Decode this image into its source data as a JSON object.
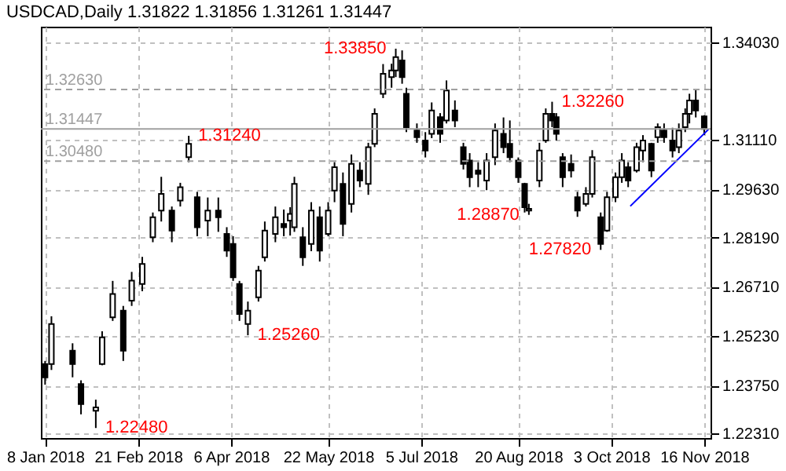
{
  "chart_data": {
    "type": "candlestick",
    "title": "USDCAD,Daily 1.31822 1.31856 1.31261 1.31447",
    "color": "#000000",
    "x": [
      "2018-01-08",
      "2018-01-11",
      "2018-01-21",
      "2018-01-25",
      "2018-02-01",
      "2018-02-04",
      "2018-02-09",
      "2018-02-14",
      "2018-02-18",
      "2018-02-23",
      "2018-02-28",
      "2018-03-04",
      "2018-03-09",
      "2018-03-13",
      "2018-03-17",
      "2018-03-21",
      "2018-03-26",
      "2018-03-31",
      "2018-04-04",
      "2018-04-07",
      "2018-04-10",
      "2018-04-14",
      "2018-04-19",
      "2018-04-22",
      "2018-04-27",
      "2018-05-01",
      "2018-05-04",
      "2018-05-06",
      "2018-05-10",
      "2018-05-14",
      "2018-05-18",
      "2018-05-22",
      "2018-05-25",
      "2018-05-29",
      "2018-06-02",
      "2018-06-06",
      "2018-06-10",
      "2018-06-13",
      "2018-06-17",
      "2018-06-21",
      "2018-06-23",
      "2018-06-26",
      "2018-06-28",
      "2018-07-03",
      "2018-07-07",
      "2018-07-10",
      "2018-07-14",
      "2018-07-17",
      "2018-07-21",
      "2018-07-25",
      "2018-07-28",
      "2018-08-01",
      "2018-08-05",
      "2018-08-09",
      "2018-08-13",
      "2018-08-16",
      "2018-08-20",
      "2018-08-23",
      "2018-08-25",
      "2018-08-30",
      "2018-09-02",
      "2018-09-05",
      "2018-09-07",
      "2018-09-10",
      "2018-09-14",
      "2018-09-17",
      "2018-09-21",
      "2018-09-24",
      "2018-09-28",
      "2018-10-01",
      "2018-10-05",
      "2018-10-08",
      "2018-10-11",
      "2018-10-15",
      "2018-10-18",
      "2018-10-22",
      "2018-10-25",
      "2018-10-28",
      "2018-11-01",
      "2018-11-04",
      "2018-11-07",
      "2018-11-09",
      "2018-11-12",
      "2018-11-16"
    ],
    "ohlc": [
      [
        1.244,
        1.2449,
        1.2378,
        1.24
      ],
      [
        1.244,
        1.2583,
        1.2422,
        1.256
      ],
      [
        1.248,
        1.2502,
        1.24,
        1.244
      ],
      [
        1.238,
        1.2391,
        1.2289,
        1.232
      ],
      [
        1.23,
        1.2333,
        1.2248,
        1.231
      ],
      [
        1.244,
        1.2538,
        1.2436,
        1.252
      ],
      [
        1.258,
        1.2689,
        1.2569,
        1.265
      ],
      [
        1.26,
        1.2614,
        1.2449,
        1.248
      ],
      [
        1.263,
        1.2716,
        1.2614,
        1.269
      ],
      [
        1.268,
        1.2761,
        1.2658,
        1.274
      ],
      [
        1.282,
        1.2894,
        1.2805,
        1.288
      ],
      [
        1.29,
        1.3001,
        1.2867,
        1.295
      ],
      [
        1.29,
        1.2912,
        1.2805,
        1.284
      ],
      [
        1.293,
        1.2983,
        1.2912,
        1.297
      ],
      [
        1.306,
        1.3124,
        1.3045,
        1.31
      ],
      [
        1.294,
        1.2956,
        1.2823,
        1.285
      ],
      [
        1.287,
        1.2939,
        1.2823,
        1.29
      ],
      [
        1.29,
        1.2939,
        1.2836,
        1.288
      ],
      [
        1.283,
        1.285,
        1.2761,
        1.278
      ],
      [
        1.28,
        1.2823,
        1.2689,
        1.27
      ],
      [
        1.268,
        1.2689,
        1.2569,
        1.259
      ],
      [
        1.256,
        1.2627,
        1.2526,
        1.26
      ],
      [
        1.264,
        1.2734,
        1.2627,
        1.272
      ],
      [
        1.276,
        1.2867,
        1.2747,
        1.284
      ],
      [
        1.283,
        1.2912,
        1.2805,
        1.288
      ],
      [
        1.286,
        1.2903,
        1.2823,
        1.285
      ],
      [
        1.287,
        1.291,
        1.2825,
        1.289
      ],
      [
        1.285,
        1.3001,
        1.2836,
        1.298
      ],
      [
        1.282,
        1.285,
        1.2734,
        1.276
      ],
      [
        1.28,
        1.2925,
        1.2778,
        1.29
      ],
      [
        1.288,
        1.2912,
        1.2747,
        1.278
      ],
      [
        1.283,
        1.2925,
        1.2823,
        1.29
      ],
      [
        1.296,
        1.3045,
        1.2925,
        1.303
      ],
      [
        1.298,
        1.3014,
        1.2823,
        1.286
      ],
      [
        1.292,
        1.3068,
        1.2894,
        1.304
      ],
      [
        1.302,
        1.3045,
        1.297,
        1.299
      ],
      [
        1.298,
        1.3103,
        1.2947,
        1.309
      ],
      [
        1.31,
        1.3206,
        1.309,
        1.319
      ],
      [
        1.325,
        1.3339,
        1.3237,
        1.331
      ],
      [
        1.33,
        1.334,
        1.3268,
        1.332
      ],
      [
        1.332,
        1.3385,
        1.33,
        1.336
      ],
      [
        1.335,
        1.338,
        1.328,
        1.33
      ],
      [
        1.325,
        1.3268,
        1.3135,
        1.315
      ],
      [
        1.314,
        1.3161,
        1.3103,
        1.312
      ],
      [
        1.311,
        1.3135,
        1.3059,
        1.308
      ],
      [
        1.313,
        1.3224,
        1.3117,
        1.32
      ],
      [
        1.318,
        1.3192,
        1.3103,
        1.313
      ],
      [
        1.317,
        1.329,
        1.3161,
        1.326
      ],
      [
        1.32,
        1.323,
        1.315,
        1.317
      ],
      [
        1.309,
        1.3103,
        1.3023,
        1.304
      ],
      [
        1.305,
        1.3072,
        1.297,
        1.3
      ],
      [
        1.302,
        1.3045,
        1.297,
        1.301
      ],
      [
        1.299,
        1.3072,
        1.2961,
        1.305
      ],
      [
        1.306,
        1.3161,
        1.3036,
        1.314
      ],
      [
        1.313,
        1.3179,
        1.3072,
        1.309
      ],
      [
        1.31,
        1.317,
        1.3045,
        1.306
      ],
      [
        1.305,
        1.3059,
        1.2983,
        1.3
      ],
      [
        1.298,
        1.2983,
        1.2894,
        1.291
      ],
      [
        1.29,
        1.292,
        1.2887,
        1.2905
      ],
      [
        1.299,
        1.3103,
        1.297,
        1.308
      ],
      [
        1.311,
        1.3206,
        1.3103,
        1.319
      ],
      [
        1.319,
        1.3226,
        1.315,
        1.317
      ],
      [
        1.318,
        1.3192,
        1.311,
        1.313
      ],
      [
        1.306,
        1.3072,
        1.297,
        1.3
      ],
      [
        1.304,
        1.3068,
        1.2999,
        1.302
      ],
      [
        1.294,
        1.2956,
        1.2881,
        1.29
      ],
      [
        1.292,
        1.297,
        1.2912,
        1.295
      ],
      [
        1.295,
        1.3081,
        1.2939,
        1.306
      ],
      [
        1.288,
        1.2894,
        1.2782,
        1.28
      ],
      [
        1.284,
        1.2956,
        1.2836,
        1.294
      ],
      [
        1.294,
        1.3014,
        1.2925,
        1.3
      ],
      [
        1.3,
        1.3072,
        1.2983,
        1.305
      ],
      [
        1.303,
        1.3045,
        1.297,
        1.299
      ],
      [
        1.302,
        1.3103,
        1.3014,
        1.309
      ],
      [
        1.308,
        1.3126,
        1.3045,
        1.311
      ],
      [
        1.31,
        1.3103,
        1.3,
        1.302
      ],
      [
        1.312,
        1.3161,
        1.3103,
        1.315
      ],
      [
        1.314,
        1.3161,
        1.3103,
        1.312
      ],
      [
        1.311,
        1.3148,
        1.3059,
        1.308
      ],
      [
        1.309,
        1.3161,
        1.3072,
        1.314
      ],
      [
        1.315,
        1.3206,
        1.3135,
        1.319
      ],
      [
        1.319,
        1.325,
        1.3161,
        1.323
      ],
      [
        1.323,
        1.3263,
        1.3179,
        1.32
      ],
      [
        1.31822,
        1.31856,
        1.31261,
        1.31447
      ]
    ],
    "series": [
      {
        "type": "line",
        "color": "#0000ff",
        "x": [
          "2018-10-12",
          "2018-11-18"
        ],
        "values": [
          1.2913,
          1.3143
        ]
      }
    ],
    "xlim": [
      "2018-01-06",
      "2018-11-19"
    ],
    "xticks": [
      {
        "value": "2018-01-08",
        "label": "8 Jan 2018"
      },
      {
        "value": "2018-02-21",
        "label": "21 Feb 2018"
      },
      {
        "value": "2018-04-06",
        "label": "6 Apr 2018"
      },
      {
        "value": "2018-05-22",
        "label": "22 May 2018"
      },
      {
        "value": "2018-07-05",
        "label": "5 Jul 2018"
      },
      {
        "value": "2018-08-20",
        "label": "20 Aug 2018"
      },
      {
        "value": "2018-10-03",
        "label": "3 Oct 2018"
      },
      {
        "value": "2018-11-16",
        "label": "16 Nov 2018"
      }
    ],
    "ylim": [
      1.2218,
      1.3451
    ],
    "yticks": [
      {
        "value": 1.2231,
        "label": "1.22310"
      },
      {
        "value": 1.2375,
        "label": "1.23750"
      },
      {
        "value": 1.2523,
        "label": "1.25230"
      },
      {
        "value": 1.2671,
        "label": "1.26710"
      },
      {
        "value": 1.2819,
        "label": "1.28190"
      },
      {
        "value": 1.2963,
        "label": "1.29630"
      },
      {
        "value": 1.3111,
        "label": "1.31110"
      },
      {
        "value": 1.3403,
        "label": "1.34030"
      }
    ],
    "grid": true,
    "ref_lines": [
      {
        "axis": "y",
        "value": 1.3263,
        "label": "1.32630",
        "color": "#a0a0a0",
        "line_style": "dashed"
      },
      {
        "axis": "y",
        "value": 1.31447,
        "label": "1.31447",
        "color": "#a0a0a0",
        "line_style": "solid"
      },
      {
        "axis": "y",
        "value": 1.3048,
        "label": "1.30480",
        "color": "#a0a0a0",
        "line_style": "dashed"
      }
    ],
    "annotations": [
      {
        "text": "1.22480",
        "x": "2018-02-01",
        "y": 1.2248
      },
      {
        "text": "1.31240",
        "x": "2018-03-17",
        "y": 1.3124
      },
      {
        "text": "1.25260",
        "x": "2018-04-14",
        "y": 1.2526
      },
      {
        "text": "1.33850",
        "x": "2018-06-23",
        "y": 1.3385
      },
      {
        "text": "1.28870",
        "x": "2018-08-25",
        "y": 1.2887
      },
      {
        "text": "1.32260",
        "x": "2018-09-05",
        "y": 1.3226
      },
      {
        "text": "1.27820",
        "x": "2018-09-28",
        "y": 1.2782
      }
    ]
  }
}
